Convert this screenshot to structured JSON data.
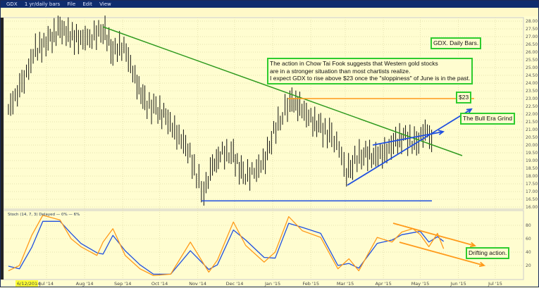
{
  "window": {
    "symbol": "GDX",
    "period": "1 yr/daily bars",
    "menu": [
      "File",
      "Edit",
      "View"
    ]
  },
  "annotations": {
    "title": "GDX. Daily Bars.",
    "main_note": [
      "The action in Chow Tai Fook suggests that Western gold stocks",
      "are in a stronger situation than most chartists realize.",
      "I expect GDX to rise above $23 once the \"sloppiness\" of June is in the past."
    ],
    "target": "$23",
    "bull": "The Bull Era Grind",
    "drift": "Drifting action."
  },
  "colors": {
    "price": "#111111",
    "trend": "#2e9a1e",
    "target": "#ff9a1a",
    "support": "#1f4fe0",
    "stoch_k": "#ff9a1a",
    "stoch_d": "#1f4fe0",
    "background": "#fffdd0"
  },
  "chart_data": [
    {
      "type": "bar",
      "title": "GDX",
      "ylim": [
        16,
        28
      ],
      "grid": true,
      "yticks": [
        "28.00",
        "27.50",
        "27.00",
        "26.50",
        "26.00",
        "25.50",
        "25.00",
        "24.50",
        "24.00",
        "23.50",
        "23.00",
        "22.50",
        "22.00",
        "21.50",
        "21.00",
        "20.50",
        "20.00",
        "19.50",
        "19.00",
        "18.50",
        "18.00",
        "17.50",
        "17.00",
        "16.50",
        "16.00"
      ],
      "series": [
        {
          "x": [
            "2014-05-31",
            "2014-06-11",
            "2014-06-22",
            "2014-07-04",
            "2014-07-12",
            "2014-07-27",
            "2014-08-07",
            "2014-08-16",
            "2014-08-24",
            "2014-09-02",
            "2014-09-11",
            "2014-09-19",
            "2014-09-28",
            "2014-10-06",
            "2014-10-15",
            "2014-10-24",
            "2014-10-31",
            "2014-11-06",
            "2014-11-13",
            "2014-11-21",
            "2014-11-30",
            "2014-12-08",
            "2014-12-17",
            "2014-12-26",
            "2014-12-31",
            "2015-01-09",
            "2015-01-15",
            "2015-01-23",
            "2015-02-01",
            "2015-02-09",
            "2015-02-18",
            "2015-02-24",
            "2015-03-02",
            "2015-03-07",
            "2015-03-16",
            "2015-03-24",
            "2015-04-02",
            "2015-04-11",
            "2015-04-19",
            "2015-04-28",
            "2015-05-05",
            "2015-05-12"
          ],
          "close": [
            22.3,
            23.9,
            26.1,
            26.8,
            27.5,
            26.8,
            27.0,
            27.5,
            26.1,
            26.4,
            24.3,
            22.7,
            22.3,
            21.8,
            20.7,
            19.8,
            18.0,
            17.0,
            18.6,
            19.5,
            19.3,
            18.0,
            18.2,
            19.1,
            20.5,
            22.0,
            22.9,
            22.5,
            21.6,
            21.1,
            20.5,
            19.8,
            18.2,
            18.9,
            19.5,
            19.3,
            19.5,
            20.2,
            20.5,
            20.0,
            21.1,
            20.0
          ]
        }
      ]
    },
    {
      "type": "line",
      "title": "Stoch",
      "subtitle": "(14, 7, 3) Delayed",
      "legend": [
        "0%",
        "6%"
      ],
      "ylim": [
        0,
        100
      ],
      "yticks": [
        "80",
        "60",
        "40",
        "20"
      ],
      "x": [
        "2014-05-31",
        "2014-06-09",
        "2014-06-19",
        "2014-06-28",
        "2014-07-12",
        "2014-07-21",
        "2014-07-29",
        "2014-08-11",
        "2014-08-16",
        "2014-08-24",
        "2014-09-03",
        "2014-09-15",
        "2014-09-26",
        "2014-10-10",
        "2014-10-26",
        "2014-11-10",
        "2014-11-17",
        "2014-11-30",
        "2014-12-10",
        "2014-12-25",
        "2015-01-03",
        "2015-01-14",
        "2015-01-25",
        "2015-02-09",
        "2015-02-23",
        "2015-03-04",
        "2015-03-12",
        "2015-03-27",
        "2015-04-08",
        "2015-04-16",
        "2015-04-25",
        "2015-05-01",
        "2015-05-08",
        "2015-05-15",
        "2015-05-20"
      ],
      "series": [
        {
          "values": [
            19,
            15,
            47,
            86,
            86,
            68,
            53,
            39,
            37,
            65,
            42,
            21,
            7,
            7,
            42,
            14,
            21,
            73,
            58,
            32,
            31,
            83,
            77,
            68,
            20,
            23,
            16,
            53,
            58,
            66,
            69,
            71,
            55,
            63,
            56
          ]
        },
        {
          "values": [
            12,
            20,
            65,
            95,
            88,
            60,
            48,
            35,
            55,
            75,
            35,
            15,
            5,
            7,
            55,
            10,
            28,
            85,
            50,
            25,
            40,
            93,
            72,
            62,
            15,
            30,
            12,
            62,
            55,
            70,
            75,
            66,
            48,
            68,
            45
          ]
        }
      ],
      "xticks": [
        "Jul '14",
        "Aug '14",
        "Sep '14",
        "Oct '14",
        "Nov '14",
        "Dec '14",
        "Jan '15",
        "Feb '15",
        "Mar '15",
        "Apr '15",
        "May '15",
        "Jun '15",
        "Jul '15"
      ],
      "cursor_date": "6/12/2014"
    }
  ]
}
